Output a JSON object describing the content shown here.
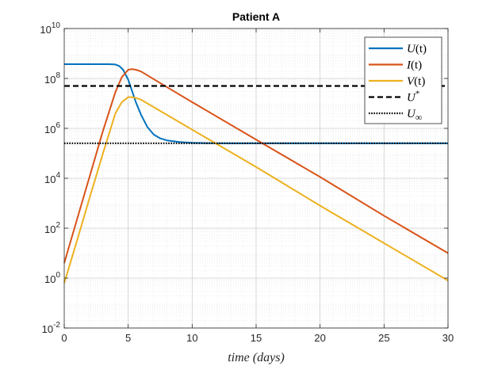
{
  "chart_data": {
    "type": "line",
    "title": "Patient A",
    "xlabel": "time (days)",
    "ylabel": "",
    "yscale": "log",
    "xlim": [
      0,
      30
    ],
    "ylim_log10": [
      -2,
      10
    ],
    "grid": true,
    "legend_position": "top-right",
    "x_ticks": [
      0,
      5,
      10,
      15,
      20,
      25,
      30
    ],
    "x_tick_labels": [
      "0",
      "5",
      "10",
      "15",
      "20",
      "25",
      "30"
    ],
    "y_ticks_log10": [
      -2,
      0,
      2,
      4,
      6,
      8,
      10
    ],
    "y_tick_labels": [
      {
        "base": "10",
        "exp": "-2"
      },
      {
        "base": "10",
        "exp": "0"
      },
      {
        "base": "10",
        "exp": "2"
      },
      {
        "base": "10",
        "exp": "4"
      },
      {
        "base": "10",
        "exp": "6"
      },
      {
        "base": "10",
        "exp": "8"
      },
      {
        "base": "10",
        "exp": "10"
      }
    ],
    "series": [
      {
        "name": "U(t)",
        "color": "#0072BD",
        "style": "solid",
        "x": [
          0,
          1,
          2,
          3,
          3.5,
          4,
          4.3,
          4.6,
          5,
          5.3,
          5.6,
          6,
          6.5,
          7,
          7.5,
          8,
          9,
          10,
          11,
          12,
          13,
          14,
          16,
          18,
          20,
          25,
          30
        ],
        "log10y": [
          8.57,
          8.57,
          8.57,
          8.57,
          8.57,
          8.56,
          8.5,
          8.35,
          7.95,
          7.5,
          7.05,
          6.55,
          6.05,
          5.75,
          5.6,
          5.52,
          5.45,
          5.42,
          5.41,
          5.4,
          5.4,
          5.4,
          5.4,
          5.4,
          5.4,
          5.4,
          5.4
        ]
      },
      {
        "name": "I(t)",
        "color": "#D95319",
        "style": "solid",
        "x": [
          0,
          1,
          2,
          3,
          4,
          4.5,
          5,
          5.3,
          5.6,
          6,
          8,
          10,
          15,
          20,
          25,
          30
        ],
        "log10y": [
          0.6,
          2.35,
          4.1,
          5.85,
          7.45,
          8.05,
          8.35,
          8.37,
          8.35,
          8.28,
          7.66,
          7.05,
          5.55,
          4.05,
          2.5,
          1.0
        ]
      },
      {
        "name": "V(t)",
        "color": "#EDB120",
        "style": "solid",
        "x": [
          0,
          1,
          2,
          3,
          4,
          4.5,
          5,
          5.3,
          5.6,
          6,
          8,
          10,
          15,
          20,
          25,
          30
        ],
        "log10y": [
          -0.2,
          1.5,
          3.25,
          4.95,
          6.6,
          7.05,
          7.25,
          7.25,
          7.22,
          7.15,
          6.55,
          5.95,
          4.45,
          2.9,
          1.4,
          -0.1
        ]
      },
      {
        "name": "U*",
        "color": "#000000",
        "style": "dashed",
        "x": [
          0,
          30
        ],
        "log10y": [
          7.7,
          7.7
        ]
      },
      {
        "name": "U∞",
        "color": "#000000",
        "style": "dotted",
        "x": [
          0,
          30
        ],
        "log10y": [
          5.4,
          5.4
        ]
      }
    ],
    "legend": [
      {
        "base": "U",
        "tail": "(t)"
      },
      {
        "base": "I",
        "tail": "(t)"
      },
      {
        "base": "V",
        "tail": "(t)"
      },
      {
        "base": "U",
        "sup": "*"
      },
      {
        "base": "U",
        "sub": "∞"
      }
    ]
  }
}
